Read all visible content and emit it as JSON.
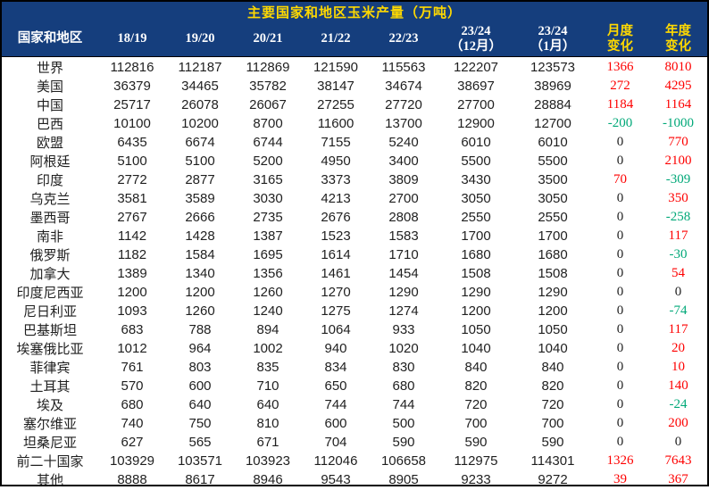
{
  "chart_data": {
    "type": "table",
    "title": "主要国家和地区玉米产量（万吨）",
    "unit": "万吨",
    "columns": [
      "国家和地区",
      "18/19",
      "19/20",
      "20/21",
      "21/22",
      "22/23",
      "23/24\n（12月）",
      "23/24\n（1月）",
      "月度\n变化",
      "年度\n变化"
    ],
    "rows": [
      {
        "name": "世界",
        "values": [
          112816,
          112187,
          112869,
          121590,
          115563,
          122207,
          123573
        ],
        "monthly": 1366,
        "yearly": 8010
      },
      {
        "name": "美国",
        "values": [
          36379,
          34465,
          35782,
          38147,
          34674,
          38697,
          38969
        ],
        "monthly": 272,
        "yearly": 4295
      },
      {
        "name": "中国",
        "values": [
          25717,
          26078,
          26067,
          27255,
          27720,
          27700,
          28884
        ],
        "monthly": 1184,
        "yearly": 1164
      },
      {
        "name": "巴西",
        "values": [
          10100,
          10200,
          8700,
          11600,
          13700,
          12900,
          12700
        ],
        "monthly": -200,
        "yearly": -1000
      },
      {
        "name": "欧盟",
        "values": [
          6435,
          6674,
          6744,
          7155,
          5240,
          6010,
          6010
        ],
        "monthly": 0,
        "yearly": 770
      },
      {
        "name": "阿根廷",
        "values": [
          5100,
          5100,
          5200,
          4950,
          3400,
          5500,
          5500
        ],
        "monthly": 0,
        "yearly": 2100
      },
      {
        "name": "印度",
        "values": [
          2772,
          2877,
          3165,
          3373,
          3809,
          3430,
          3500
        ],
        "monthly": 70,
        "yearly": -309
      },
      {
        "name": "乌克兰",
        "values": [
          3581,
          3589,
          3030,
          4213,
          2700,
          3050,
          3050
        ],
        "monthly": 0,
        "yearly": 350
      },
      {
        "name": "墨西哥",
        "values": [
          2767,
          2666,
          2735,
          2676,
          2808,
          2550,
          2550
        ],
        "monthly": 0,
        "yearly": -258
      },
      {
        "name": "南非",
        "values": [
          1142,
          1428,
          1387,
          1523,
          1583,
          1700,
          1700
        ],
        "monthly": 0,
        "yearly": 117
      },
      {
        "name": "俄罗斯",
        "values": [
          1182,
          1584,
          1695,
          1614,
          1710,
          1680,
          1680
        ],
        "monthly": 0,
        "yearly": -30
      },
      {
        "name": "加拿大",
        "values": [
          1389,
          1340,
          1356,
          1461,
          1454,
          1508,
          1508
        ],
        "monthly": 0,
        "yearly": 54
      },
      {
        "name": "印度尼西亚",
        "values": [
          1200,
          1200,
          1260,
          1270,
          1290,
          1290,
          1290
        ],
        "monthly": 0,
        "yearly": 0
      },
      {
        "name": "尼日利亚",
        "values": [
          1093,
          1260,
          1240,
          1275,
          1274,
          1200,
          1200
        ],
        "monthly": 0,
        "yearly": -74
      },
      {
        "name": "巴基斯坦",
        "values": [
          683,
          788,
          894,
          1064,
          933,
          1050,
          1050
        ],
        "monthly": 0,
        "yearly": 117
      },
      {
        "name": "埃塞俄比亚",
        "values": [
          1012,
          964,
          1002,
          940,
          1020,
          1040,
          1040
        ],
        "monthly": 0,
        "yearly": 20
      },
      {
        "name": "菲律宾",
        "values": [
          761,
          803,
          835,
          834,
          830,
          840,
          840
        ],
        "monthly": 0,
        "yearly": 10
      },
      {
        "name": "土耳其",
        "values": [
          570,
          600,
          710,
          650,
          680,
          820,
          820
        ],
        "monthly": 0,
        "yearly": 140
      },
      {
        "name": "埃及",
        "values": [
          680,
          640,
          640,
          744,
          744,
          720,
          720
        ],
        "monthly": 0,
        "yearly": -24
      },
      {
        "name": "塞尔维亚",
        "values": [
          740,
          750,
          810,
          600,
          500,
          700,
          700
        ],
        "monthly": 0,
        "yearly": 200
      },
      {
        "name": "坦桑尼亚",
        "values": [
          627,
          565,
          671,
          704,
          590,
          590,
          590
        ],
        "monthly": 0,
        "yearly": 0
      },
      {
        "name": "前二十国家",
        "values": [
          103929,
          103571,
          103923,
          112046,
          106658,
          112975,
          114301
        ],
        "monthly": 1326,
        "yearly": 7643
      },
      {
        "name": "其他",
        "values": [
          8888,
          8617,
          8946,
          9543,
          8905,
          9233,
          9272
        ],
        "monthly": 39,
        "yearly": 367
      }
    ],
    "layout": {
      "header_bg": "#153E7D",
      "title_color": "#FFD900",
      "header_text_color": "#FFFFFF",
      "accent_header_color": "#FFD900",
      "positive_color": "#FE0000",
      "negative_color": "#00A878",
      "neutral_color": "#1F1F1F",
      "grid": "none"
    }
  }
}
